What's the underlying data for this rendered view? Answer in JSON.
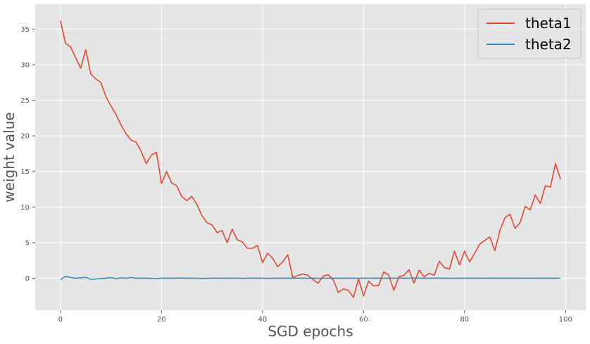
{
  "chart_data": {
    "type": "line",
    "title": "",
    "xlabel": "SGD epochs",
    "ylabel": "weight value",
    "xlim": [
      -5,
      104
    ],
    "ylim": [
      -4.5,
      38.5
    ],
    "xticks": [
      0,
      20,
      40,
      60,
      80,
      100
    ],
    "yticks": [
      0,
      5,
      10,
      15,
      20,
      25,
      30,
      35
    ],
    "grid": true,
    "style": "ggplot",
    "legend_position": "top-right",
    "series": [
      {
        "name": "theta1",
        "color": "#E24A33",
        "x": [
          0,
          1,
          2,
          3,
          4,
          5,
          6,
          7,
          8,
          9,
          10,
          11,
          12,
          13,
          14,
          15,
          16,
          17,
          18,
          19,
          20,
          21,
          22,
          23,
          24,
          25,
          26,
          27,
          28,
          29,
          30,
          31,
          32,
          33,
          34,
          35,
          36,
          37,
          38,
          39,
          40,
          41,
          42,
          43,
          44,
          45,
          46,
          47,
          48,
          49,
          50,
          51,
          52,
          53,
          54,
          55,
          56,
          57,
          58,
          59,
          60,
          61,
          62,
          63,
          64,
          65,
          66,
          67,
          68,
          69,
          70,
          71,
          72,
          73,
          74,
          75,
          76,
          77,
          78,
          79,
          80,
          81,
          82,
          83,
          84,
          85,
          86,
          87,
          88,
          89,
          90,
          91,
          92,
          93,
          94,
          95,
          96,
          97,
          98,
          99
        ],
        "values": [
          36.2,
          33.0,
          32.5,
          31.0,
          29.5,
          32.1,
          28.7,
          28.0,
          27.5,
          25.5,
          24.2,
          23.0,
          21.5,
          20.3,
          19.4,
          19.1,
          17.8,
          16.1,
          17.3,
          17.7,
          13.3,
          15.0,
          13.4,
          13.0,
          11.5,
          10.9,
          11.5,
          10.4,
          8.8,
          7.8,
          7.5,
          6.4,
          6.7,
          5.0,
          6.9,
          5.4,
          5.1,
          4.2,
          4.2,
          4.6,
          2.2,
          3.5,
          2.8,
          1.6,
          2.3,
          3.3,
          0.1,
          0.4,
          0.6,
          0.4,
          -0.2,
          -0.7,
          0.3,
          0.5,
          -0.2,
          -2.0,
          -1.5,
          -1.7,
          -2.7,
          -0.1,
          -2.5,
          -0.4,
          -1.1,
          -1.0,
          0.9,
          0.4,
          -1.7,
          0.2,
          0.4,
          1.2,
          -0.7,
          1.1,
          0.2,
          0.7,
          0.4,
          2.4,
          1.5,
          1.3,
          3.8,
          1.9,
          3.8,
          2.3,
          3.5,
          4.8,
          5.3,
          5.8,
          3.9,
          6.7,
          8.5,
          9.0,
          7.0,
          7.8,
          10.1,
          9.6,
          11.7,
          10.5,
          13.0,
          12.8,
          16.1,
          13.9
        ]
      },
      {
        "name": "theta2",
        "color": "#348ABD",
        "x": [
          0,
          1,
          2,
          3,
          4,
          5,
          6,
          7,
          8,
          9,
          10,
          11,
          12,
          13,
          14,
          15,
          16,
          17,
          18,
          19,
          20,
          21,
          22,
          23,
          24,
          25,
          26,
          27,
          28,
          29,
          30,
          31,
          32,
          33,
          34,
          35,
          36,
          37,
          38,
          39,
          40,
          41,
          42,
          43,
          44,
          45,
          46,
          47,
          48,
          49,
          50,
          51,
          52,
          53,
          54,
          55,
          56,
          57,
          58,
          59,
          60,
          61,
          62,
          63,
          64,
          65,
          66,
          67,
          68,
          69,
          70,
          71,
          72,
          73,
          74,
          75,
          76,
          77,
          78,
          79,
          80,
          81,
          82,
          83,
          84,
          85,
          86,
          87,
          88,
          89,
          90,
          91,
          92,
          93,
          94,
          95,
          96,
          97,
          98,
          99
        ],
        "values": [
          -0.2,
          0.25,
          0.1,
          0.0,
          0.05,
          0.12,
          -0.15,
          -0.1,
          -0.05,
          0.0,
          0.08,
          -0.05,
          0.05,
          0.0,
          0.1,
          0.0,
          0.02,
          0.0,
          -0.02,
          -0.05,
          0.0,
          0.02,
          0.0,
          0.01,
          0.03,
          0.0,
          0.02,
          0.0,
          -0.03,
          -0.02,
          0.0,
          0.01,
          -0.01,
          0.02,
          0.0,
          0.02,
          -0.02,
          0.01,
          0.02,
          0.0,
          0.0,
          -0.02,
          0.0,
          0.01,
          0.0,
          0.02,
          0.0,
          0.0,
          0.01,
          -0.01,
          0.0,
          -0.02,
          0.0,
          0.01,
          0.0,
          0.0,
          0.0,
          0.01,
          0.0,
          -0.01,
          0.0,
          0.0,
          0.0,
          0.01,
          0.0,
          0.0,
          0.0,
          0.0,
          0.01,
          0.0,
          0.0,
          0.0,
          0.01,
          0.0,
          0.0,
          0.02,
          0.0,
          0.0,
          -0.01,
          0.0,
          0.0,
          0.01,
          0.0,
          0.0,
          -0.01,
          0.02,
          0.0,
          0.0,
          0.0,
          0.0,
          0.01,
          0.0,
          0.0,
          -0.01,
          0.0,
          0.01,
          0.0,
          0.0,
          0.0,
          0.01
        ]
      }
    ]
  }
}
